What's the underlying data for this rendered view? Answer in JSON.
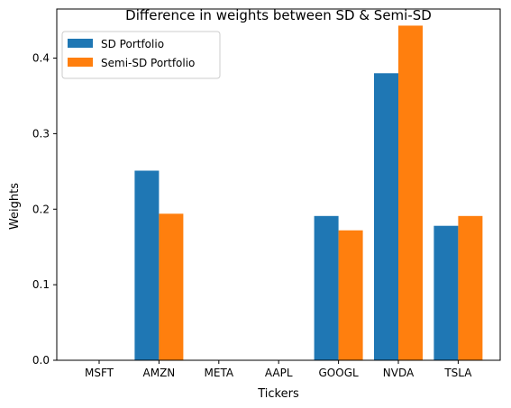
{
  "chart_data": {
    "type": "bar",
    "title": "Difference in weights between SD & Semi-SD",
    "xlabel": "Tickers",
    "ylabel": "Weights",
    "categories": [
      "MSFT",
      "AMZN",
      "META",
      "AAPL",
      "GOOGL",
      "NVDA",
      "TSLA"
    ],
    "series": [
      {
        "name": "SD Portfolio",
        "color": "#1f77b4",
        "values": [
          0.0,
          0.251,
          0.0,
          0.0,
          0.191,
          0.38,
          0.178
        ]
      },
      {
        "name": "Semi-SD Portfolio",
        "color": "#ff7f0e",
        "values": [
          0.0,
          0.194,
          0.0,
          0.0,
          0.172,
          0.443,
          0.191
        ]
      }
    ],
    "ylim": [
      0,
      0.465
    ],
    "yticks": [
      "0.0",
      "0.1",
      "0.2",
      "0.3",
      "0.4"
    ],
    "ytick_values": [
      0.0,
      0.1,
      0.2,
      0.3,
      0.4
    ],
    "grid": false,
    "legend_position": "top-left"
  }
}
